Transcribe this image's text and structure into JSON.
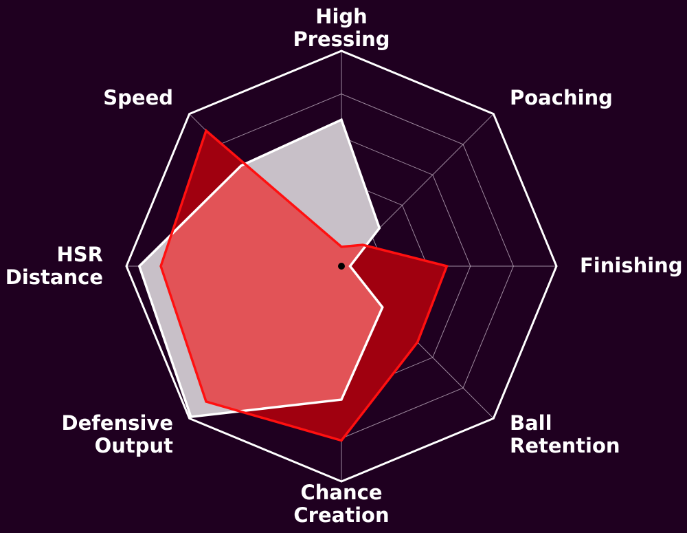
{
  "colors": {
    "background": "#1f0020",
    "grid": "#c9b8c9",
    "outline": "#ffffff",
    "player_a_fill": "#c8c0c8",
    "player_a_line": "#ffffff",
    "player_b_fill": "#a0000f",
    "player_b_line": "#ff1010",
    "overlap_fill": "#e25357"
  },
  "chart_data": {
    "type": "radar",
    "axes": [
      {
        "lines": [
          "High",
          "Pressing"
        ]
      },
      {
        "lines": [
          "Poaching"
        ]
      },
      {
        "lines": [
          "Finishing"
        ]
      },
      {
        "lines": [
          "Ball",
          "Retention"
        ]
      },
      {
        "lines": [
          "Chance",
          "Creation"
        ]
      },
      {
        "lines": [
          "Defensive",
          "Output"
        ]
      },
      {
        "lines": [
          "HSR",
          "Distance"
        ]
      },
      {
        "lines": [
          "Speed"
        ]
      }
    ],
    "range": [
      0,
      100
    ],
    "grid_rings": 5,
    "grid": true,
    "series": [
      {
        "key": "player_a",
        "values": [
          68,
          25,
          4,
          27,
          62,
          99,
          94,
          66
        ]
      },
      {
        "key": "player_b",
        "values": [
          9,
          14,
          49,
          50,
          81,
          89,
          84,
          89
        ]
      }
    ]
  }
}
